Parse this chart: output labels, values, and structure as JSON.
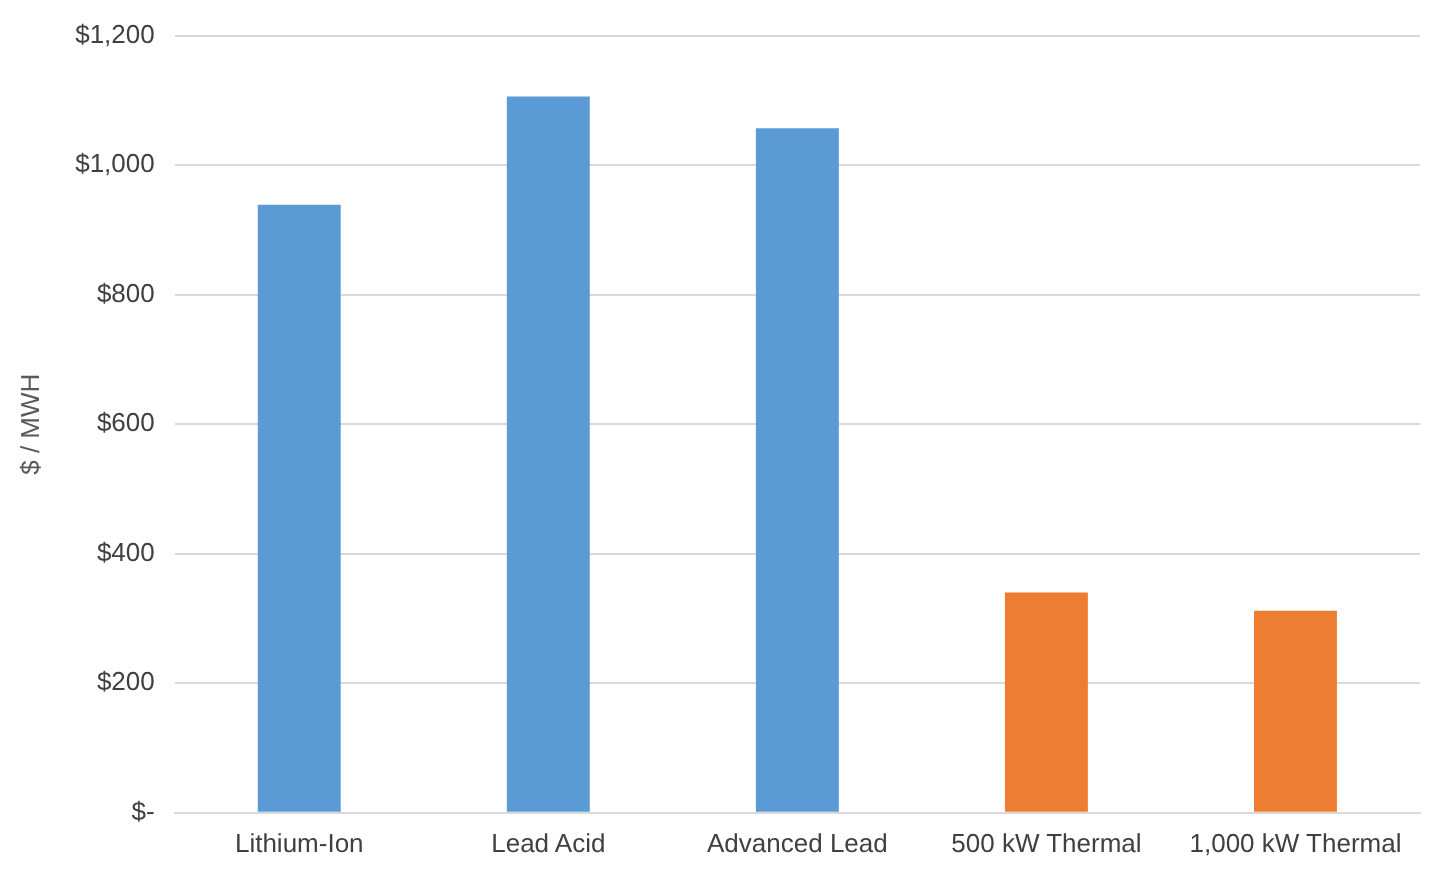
{
  "chart_data": {
    "type": "bar",
    "ylabel": "$ / MWH",
    "categories": [
      "Lithium-Ion",
      "Lead Acid",
      "Advanced Lead",
      "500 kW Thermal",
      "1,000 kW Thermal"
    ],
    "values": [
      939,
      1106,
      1057,
      340,
      312
    ],
    "colors": [
      "#5b9bd5",
      "#5b9bd5",
      "#5b9bd5",
      "#ed7d31",
      "#ed7d31"
    ],
    "ylim": [
      0,
      1200
    ],
    "yticks": [
      {
        "value": 0,
        "label": "$-"
      },
      {
        "value": 200,
        "label": "$200"
      },
      {
        "value": 400,
        "label": "$400"
      },
      {
        "value": 600,
        "label": "$600"
      },
      {
        "value": 800,
        "label": "$800"
      },
      {
        "value": 1000,
        "label": "$1,000"
      },
      {
        "value": 1200,
        "label": "$1,200"
      }
    ],
    "grid": "y"
  }
}
